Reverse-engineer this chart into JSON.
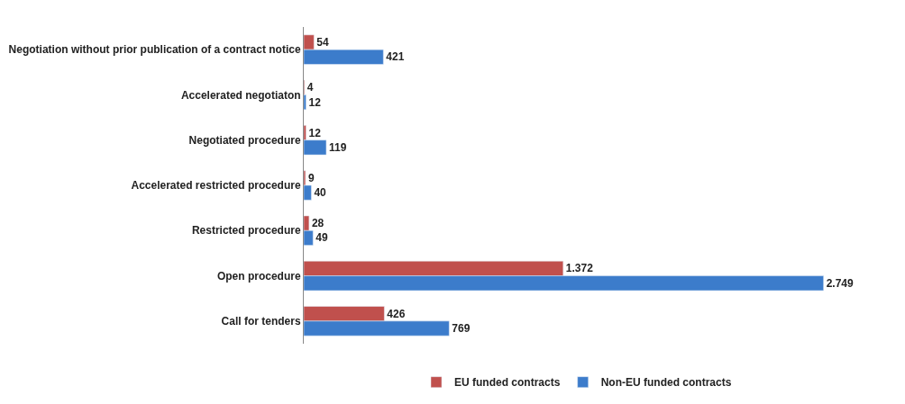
{
  "chart_data": {
    "type": "bar",
    "orientation": "horizontal",
    "legend": "bottom",
    "categories": [
      "Negotiation without prior publication of a contract notice",
      "Accelerated negotiaton",
      "Negotiated procedure",
      "Accelerated restricted procedure",
      "Restricted procedure",
      "Open procedure",
      "Call for tenders"
    ],
    "series": [
      {
        "name": "EU funded contracts",
        "color": "#c0504d",
        "values": [
          54,
          4,
          12,
          9,
          28,
          1372,
          426
        ],
        "value_labels": [
          "54",
          "4",
          "12",
          "9",
          "28",
          "1.372",
          "426"
        ]
      },
      {
        "name": "Non-EU funded contracts",
        "color": "#3c7ccb",
        "values": [
          421,
          12,
          119,
          40,
          49,
          2749,
          769
        ],
        "value_labels": [
          "421",
          "12",
          "119",
          "40",
          "49",
          "2.749",
          "769"
        ]
      }
    ]
  }
}
